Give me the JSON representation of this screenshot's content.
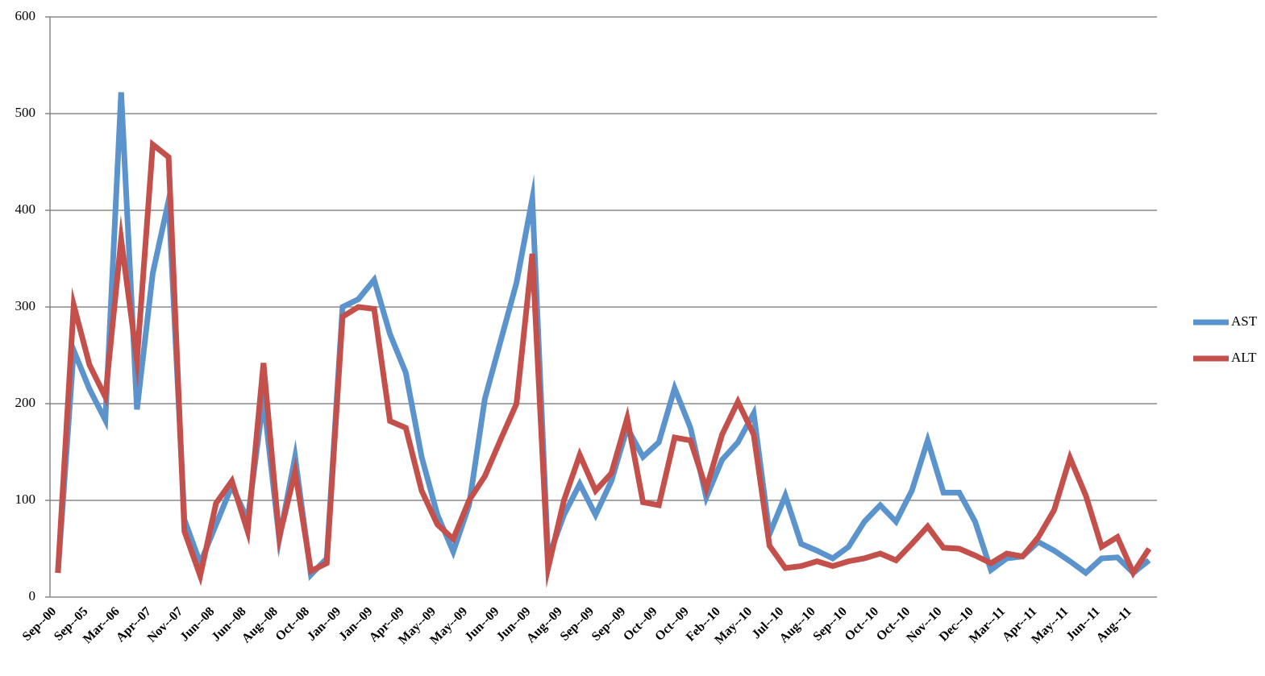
{
  "chart_data": {
    "type": "line",
    "categories": [
      "Sep--00",
      null,
      "Sep--05",
      null,
      "Mar--06",
      null,
      "Apr--07",
      null,
      "Nov--07",
      null,
      "Jun--08",
      null,
      "Jun--08",
      null,
      "Aug--08",
      null,
      "Oct--08",
      null,
      "Jan--09",
      null,
      "Jan--09",
      null,
      "Apr--09",
      null,
      "May--09",
      null,
      "May--09",
      null,
      "Jun--09",
      null,
      "Jun--09",
      null,
      "Aug--09",
      null,
      "Sep--09",
      null,
      "Sep--09",
      null,
      "Oct--09",
      null,
      "Oct--09",
      null,
      "Feb--10",
      null,
      "May--10",
      null,
      "Jul--10",
      null,
      "Aug--10",
      null,
      "Sep--10",
      null,
      "Oct--10",
      null,
      "Oct--10",
      null,
      "Nov--10",
      null,
      "Dec--10",
      null,
      "Mar--11",
      null,
      "Apr--11",
      null,
      "May--11",
      null,
      "Jun--11",
      null,
      "Aug--11",
      null
    ],
    "series": [
      {
        "name": "AST",
        "color": "#5b93cc",
        "values": [
          25,
          255,
          215,
          183,
          522,
          194,
          335,
          410,
          80,
          35,
          75,
          115,
          80,
          205,
          60,
          145,
          23,
          40,
          300,
          308,
          328,
          272,
          232,
          145,
          85,
          47,
          95,
          205,
          265,
          325,
          412,
          40,
          85,
          117,
          85,
          120,
          175,
          145,
          160,
          216,
          175,
          103,
          142,
          160,
          190,
          65,
          105,
          55,
          48,
          40,
          52,
          78,
          95,
          78,
          110,
          162,
          108,
          108,
          78,
          28,
          40,
          42,
          57,
          48,
          37,
          25,
          40,
          41,
          25,
          38
        ]
      },
      {
        "name": "ALT",
        "color": "#c4504c",
        "values": [
          25,
          302,
          240,
          207,
          370,
          245,
          468,
          455,
          68,
          22,
          97,
          120,
          68,
          242,
          62,
          130,
          27,
          35,
          290,
          300,
          298,
          182,
          175,
          110,
          75,
          60,
          100,
          125,
          163,
          200,
          355,
          30,
          100,
          147,
          110,
          128,
          185,
          98,
          95,
          165,
          162,
          112,
          168,
          202,
          168,
          53,
          30,
          32,
          37,
          32,
          37,
          40,
          45,
          38,
          55,
          73,
          51,
          50,
          43,
          35,
          45,
          42,
          62,
          90,
          144,
          105,
          52,
          62,
          25,
          50
        ]
      }
    ],
    "ylim": [
      0,
      600
    ],
    "yticks": [
      0,
      100,
      200,
      300,
      400,
      500,
      600
    ],
    "grid": true,
    "legend": "right"
  }
}
